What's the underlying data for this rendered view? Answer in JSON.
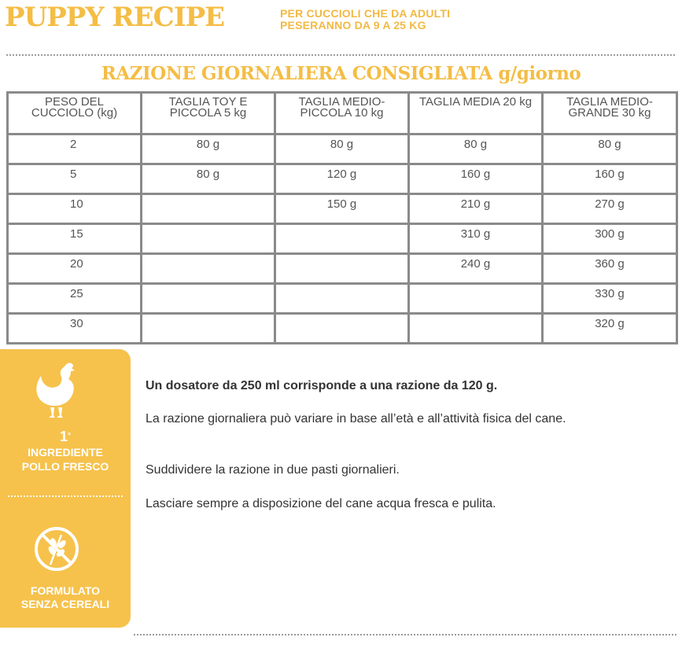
{
  "header": {
    "brand": "PUPPY RECIPE",
    "subtitle_line1": "PER CUCCIOLI CHE DA ADULTI",
    "subtitle_line2": "PESERANNO DA 9 A 25 KG"
  },
  "table": {
    "title": "RAZIONE GIORNALIERA CONSIGLIATA g/giorno",
    "headers": [
      "PESO DEL CUCCIOLO (kg)",
      "TAGLIA TOY E PICCOLA 5 kg",
      "TAGLIA MEDIO-PICCOLA 10 kg",
      "TAGLIA MEDIA 20 kg",
      "TAGLIA MEDIO-GRANDE 30 kg"
    ],
    "rows": [
      [
        "2",
        "80 g",
        "80 g",
        "80 g",
        "80 g"
      ],
      [
        "5",
        "80 g",
        "120 g",
        "160 g",
        "160 g"
      ],
      [
        "10",
        "",
        "150 g",
        "210 g",
        "270 g"
      ],
      [
        "15",
        "",
        "",
        "310 g",
        "300 g"
      ],
      [
        "20",
        "",
        "",
        "240 g",
        "360 g"
      ],
      [
        "25",
        "",
        "",
        "",
        "330 g"
      ],
      [
        "30",
        "",
        "",
        "",
        "320 g"
      ]
    ]
  },
  "sidebar": {
    "badge_number": "1",
    "badge_sup": "°",
    "ingredient_line1": "INGREDIENTE",
    "ingredient_line2": "POLLO FRESCO",
    "formula_line1": "FORMULATO",
    "formula_line2": "SENZA CEREALI",
    "color": "#f6c24c"
  },
  "info": {
    "line1": "Un dosatore da 250 ml corrisponde a una razione da 120 g.",
    "line2": "La razione giornaliera può variare in base all’età e all’attività fisica del cane.",
    "line3": "Suddividere la razione in due pasti giornalieri.",
    "line4": "Lasciare sempre a disposizione del cane acqua fresca e pulita."
  },
  "icons": {
    "chicken": "chicken-icon",
    "no_cereal": "no-grain-icon"
  },
  "colors": {
    "accent": "#f4bd45",
    "table_border": "#8a8a8a"
  }
}
